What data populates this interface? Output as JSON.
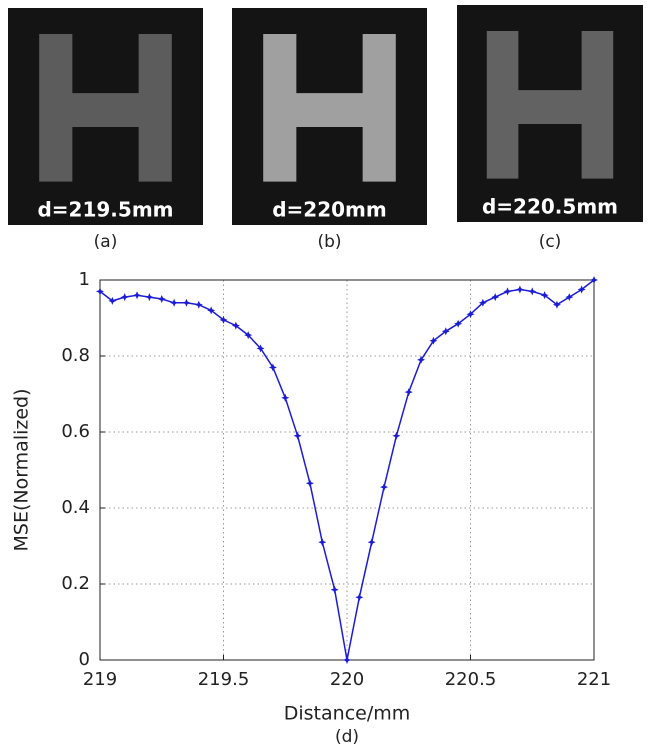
{
  "panels": [
    {
      "label": "d=219.5mm",
      "caption": "(a)"
    },
    {
      "label": "d=220mm",
      "caption": "(b)"
    },
    {
      "label": "d=220.5mm",
      "caption": "(c)"
    }
  ],
  "chart_data": {
    "type": "line",
    "caption": "(d)",
    "xlabel": "Distance/mm",
    "ylabel": "MSE(Normalized)",
    "x": [
      219,
      219.05,
      219.1,
      219.15,
      219.2,
      219.25,
      219.3,
      219.35,
      219.4,
      219.45,
      219.5,
      219.55,
      219.6,
      219.65,
      219.7,
      219.75,
      219.8,
      219.85,
      219.9,
      219.95,
      220,
      220.05,
      220.1,
      220.15,
      220.2,
      220.25,
      220.3,
      220.35,
      220.4,
      220.45,
      220.5,
      220.55,
      220.6,
      220.65,
      220.7,
      220.75,
      220.8,
      220.85,
      220.9,
      220.95,
      221
    ],
    "series": [
      {
        "color": "#1c1cd6",
        "values": [
          0.97,
          0.945,
          0.955,
          0.96,
          0.955,
          0.95,
          0.94,
          0.94,
          0.935,
          0.92,
          0.895,
          0.88,
          0.855,
          0.82,
          0.77,
          0.69,
          0.59,
          0.465,
          0.31,
          0.185,
          0,
          0.165,
          0.31,
          0.455,
          0.59,
          0.705,
          0.79,
          0.84,
          0.865,
          0.885,
          0.91,
          0.94,
          0.955,
          0.97,
          0.975,
          0.97,
          0.96,
          0.935,
          0.955,
          0.975,
          1.0
        ]
      }
    ],
    "xlim": [
      219,
      221
    ],
    "ylim": [
      0,
      1
    ],
    "xticks": [
      219,
      219.5,
      220,
      220.5,
      221
    ],
    "yticks": [
      0,
      0.2,
      0.4,
      0.6,
      0.8,
      1
    ],
    "grid": true
  }
}
